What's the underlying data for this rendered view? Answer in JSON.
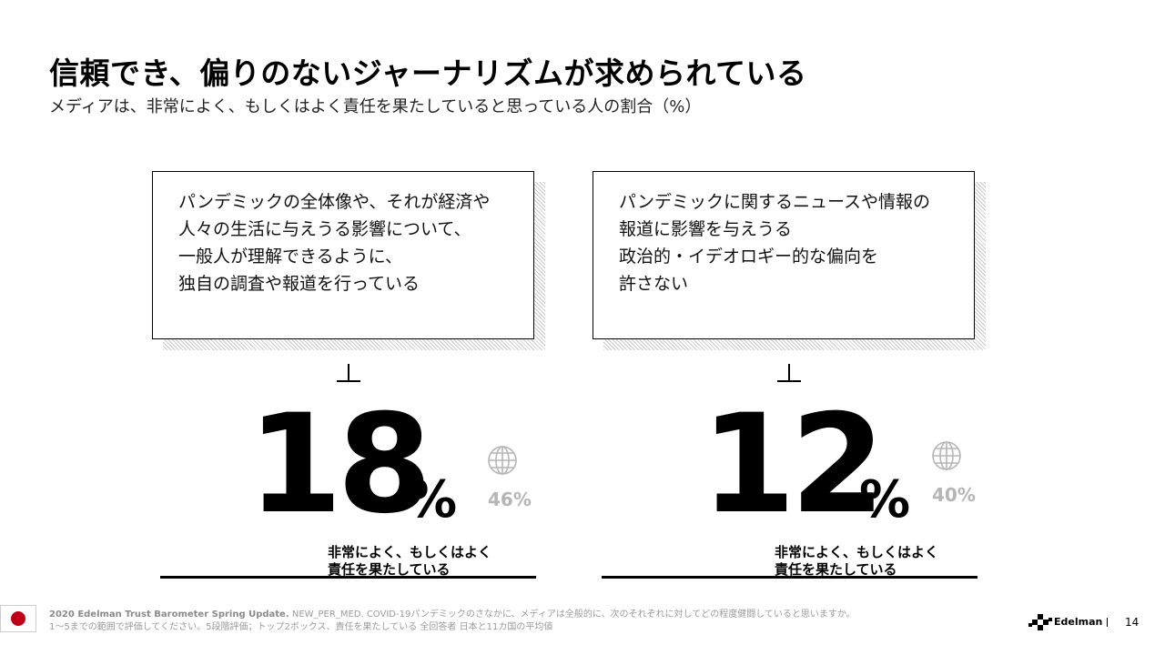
{
  "header": {
    "title": "信頼でき、偏りのないジャーナリズムが求められている",
    "subtitle": "メディアは、非常によく、もしくはよく責任を果たしていると思っている人の割合（%）"
  },
  "items": [
    {
      "statement_lines": [
        "パンデミックの全体像や、それが経済や",
        "人々の生活に与えうる影響について、",
        "一般人が理解できるように、",
        "独自の調査や報道を行っている"
      ],
      "japan_value": "18",
      "percent_sign": "%",
      "global_value": "46%",
      "label_lines": [
        "非常によく、もしくはよく",
        "責任を果たしている"
      ]
    },
    {
      "statement_lines": [
        "パンデミックに関するニュースや情報の",
        "報道に影響を与えうる",
        "政治的・イデオロギー的な偏向を",
        "許さない"
      ],
      "japan_value": "12",
      "percent_sign": "%",
      "global_value": "40%",
      "label_lines": [
        "非常によく、もしくはよく",
        "責任を果たしている"
      ]
    }
  ],
  "footer": {
    "source_bold": "2020 Edelman Trust Barometer Spring Update.",
    "source_text": " NEW_PER_MED. COVID-19パンデミックのさなかに、メディアは全般的に、次のそれぞれに対してどの程度健闘していると思いますか。",
    "line2": "1～5までの範囲で評価してください。5段階評価；トップ2ボックス、責任を果たしている  全回答者  日本と11カ国の平均値",
    "brand": "Edelman",
    "page_number": "14"
  },
  "icons": {
    "global": "globe-icon",
    "flag": "japan-flag-icon",
    "logo": "edelman-logo-icon"
  },
  "colors": {
    "global_value": "#b5b5b5",
    "flag_red": "#c00018"
  }
}
